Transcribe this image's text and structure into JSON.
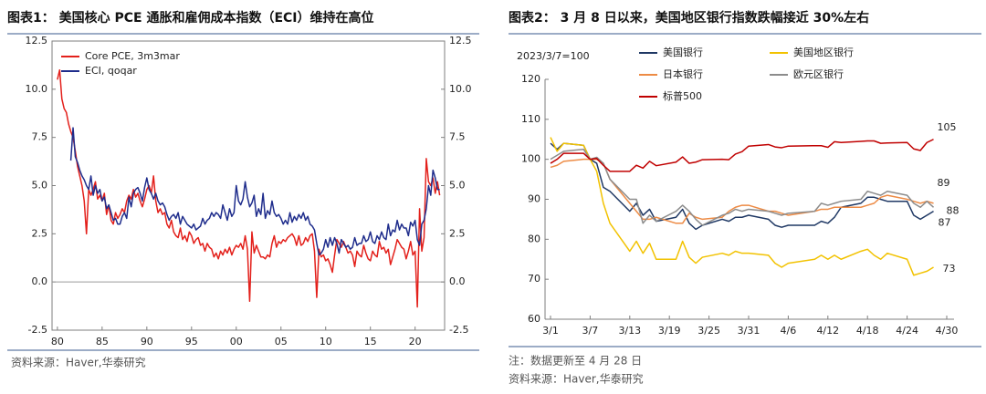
{
  "chart_data": [
    {
      "type": "line",
      "title": "图表1：  美国核心 PCE 通胀和雇佣成本指数（ECI）维持在高位",
      "source": "资料来源：Haver,华泰研究",
      "legend": "upper left",
      "zero_line": true,
      "x": [
        1980,
        1980.25,
        1980.5,
        1980.75,
        1981,
        1981.25,
        1981.5,
        1981.75,
        1982,
        1982.25,
        1982.5,
        1982.75,
        1983,
        1983.25,
        1983.5,
        1983.75,
        1984,
        1984.25,
        1984.5,
        1984.75,
        1985,
        1985.25,
        1985.5,
        1985.75,
        1986,
        1986.25,
        1986.5,
        1986.75,
        1987,
        1987.25,
        1987.5,
        1987.75,
        1988,
        1988.25,
        1988.5,
        1988.75,
        1989,
        1989.25,
        1989.5,
        1989.75,
        1990,
        1990.25,
        1990.5,
        1990.75,
        1991,
        1991.25,
        1991.5,
        1991.75,
        1992,
        1992.25,
        1992.5,
        1992.75,
        1993,
        1993.25,
        1993.5,
        1993.75,
        1994,
        1994.25,
        1994.5,
        1994.75,
        1995,
        1995.25,
        1995.5,
        1995.75,
        1996,
        1996.25,
        1996.5,
        1996.75,
        1997,
        1997.25,
        1997.5,
        1997.75,
        1998,
        1998.25,
        1998.5,
        1998.75,
        1999,
        1999.25,
        1999.5,
        1999.75,
        2000,
        2000.25,
        2000.5,
        2000.75,
        2001,
        2001.25,
        2001.5,
        2001.75,
        2002,
        2002.25,
        2002.5,
        2002.75,
        2003,
        2003.25,
        2003.5,
        2003.75,
        2004,
        2004.25,
        2004.5,
        2004.75,
        2005,
        2005.25,
        2005.5,
        2005.75,
        2006,
        2006.25,
        2006.5,
        2006.75,
        2007,
        2007.25,
        2007.5,
        2007.75,
        2008,
        2008.25,
        2008.5,
        2008.75,
        2009,
        2009.25,
        2009.5,
        2009.75,
        2010,
        2010.25,
        2010.5,
        2010.75,
        2011,
        2011.25,
        2011.5,
        2011.75,
        2012,
        2012.25,
        2012.5,
        2012.75,
        2013,
        2013.25,
        2013.5,
        2013.75,
        2014,
        2014.25,
        2014.5,
        2014.75,
        2015,
        2015.25,
        2015.5,
        2015.75,
        2016,
        2016.25,
        2016.5,
        2016.75,
        2017,
        2017.25,
        2017.5,
        2017.75,
        2018,
        2018.25,
        2018.5,
        2018.75,
        2019,
        2019.25,
        2019.5,
        2019.75,
        2020,
        2020.25,
        2020.5,
        2020.75,
        2021,
        2021.25,
        2021.5,
        2021.75,
        2022,
        2022.25,
        2022.5,
        2022.75
      ],
      "series": [
        {
          "name": "Core PCE, 3m3mar",
          "color": "#e3201b",
          "values": [
            10.5,
            11.0,
            9.5,
            9.0,
            8.8,
            8.2,
            7.8,
            7.5,
            6.8,
            6.0,
            5.5,
            5.0,
            4.2,
            2.5,
            4.8,
            4.5,
            4.8,
            5.2,
            4.3,
            4.5,
            4.2,
            4.6,
            3.5,
            4.0,
            3.2,
            3.0,
            3.6,
            3.3,
            3.5,
            3.8,
            3.6,
            4.2,
            4.5,
            4.3,
            4.8,
            4.4,
            4.6,
            4.2,
            3.9,
            4.3,
            4.8,
            5.0,
            4.6,
            5.5,
            4.2,
            3.6,
            3.8,
            3.5,
            3.6,
            3.0,
            2.8,
            3.2,
            2.6,
            2.4,
            2.3,
            2.8,
            2.2,
            2.4,
            2.1,
            2.6,
            2.4,
            2.0,
            2.2,
            2.3,
            1.9,
            2.0,
            1.6,
            2.0,
            1.8,
            1.7,
            1.3,
            1.5,
            1.2,
            1.6,
            1.4,
            1.7,
            1.5,
            1.8,
            1.4,
            1.7,
            1.9,
            1.8,
            2.0,
            1.7,
            2.4,
            1.7,
            -1.0,
            2.6,
            1.5,
            1.9,
            1.6,
            1.3,
            1.3,
            1.2,
            1.4,
            1.3,
            2.0,
            2.4,
            1.8,
            2.1,
            2.0,
            2.2,
            2.1,
            2.3,
            2.4,
            2.5,
            2.3,
            1.9,
            2.4,
            1.9,
            2.0,
            2.3,
            2.1,
            2.4,
            2.5,
            1.6,
            -0.8,
            1.7,
            1.3,
            1.4,
            1.1,
            1.2,
            0.9,
            0.5,
            1.4,
            2.2,
            2.0,
            1.8,
            2.1,
            1.8,
            1.5,
            1.6,
            1.4,
            0.8,
            1.6,
            1.4,
            1.3,
            1.9,
            1.5,
            1.2,
            1.1,
            1.6,
            1.4,
            1.3,
            2.1,
            1.7,
            1.8,
            1.5,
            1.7,
            0.9,
            1.3,
            1.7,
            2.2,
            2.0,
            1.8,
            1.7,
            1.2,
            1.6,
            2.1,
            1.4,
            1.6,
            -1.3,
            3.8,
            1.6,
            2.3,
            6.4,
            5.2,
            5.0,
            5.4,
            4.6,
            5.2,
            4.5
          ]
        },
        {
          "name": "ECI, qoqar",
          "color": "#1f2d8c",
          "values": [
            null,
            null,
            null,
            null,
            null,
            null,
            6.3,
            8.0,
            6.5,
            6.2,
            5.8,
            5.5,
            5.3,
            5.0,
            4.8,
            5.5,
            4.5,
            5.0,
            4.6,
            4.8,
            4.2,
            4.4,
            3.8,
            4.0,
            3.6,
            3.2,
            3.3,
            3.0,
            3.0,
            3.4,
            3.6,
            3.3,
            4.4,
            3.9,
            4.6,
            4.8,
            4.9,
            4.6,
            4.2,
            4.9,
            5.4,
            4.8,
            4.6,
            4.3,
            4.6,
            4.2,
            4.0,
            4.1,
            3.9,
            3.5,
            3.2,
            3.4,
            3.5,
            3.3,
            3.6,
            3.0,
            3.4,
            3.2,
            3.0,
            2.9,
            2.8,
            3.0,
            2.7,
            2.8,
            2.9,
            3.3,
            3.0,
            3.2,
            3.3,
            3.6,
            3.4,
            3.6,
            3.5,
            3.3,
            4.0,
            3.6,
            3.2,
            3.8,
            3.4,
            3.6,
            5.0,
            4.2,
            4.0,
            4.3,
            5.2,
            4.4,
            3.9,
            4.1,
            4.5,
            3.4,
            3.8,
            3.5,
            4.6,
            3.3,
            3.7,
            3.5,
            4.2,
            3.6,
            3.4,
            3.5,
            3.3,
            3.0,
            3.2,
            3.0,
            3.6,
            3.1,
            3.4,
            3.2,
            3.5,
            3.3,
            3.6,
            3.2,
            3.4,
            3.0,
            2.9,
            2.7,
            2.0,
            1.4,
            1.5,
            1.7,
            2.2,
            1.8,
            2.3,
            1.9,
            2.3,
            2.0,
            1.5,
            2.2,
            2.0,
            1.8,
            1.9,
            1.7,
            1.8,
            2.3,
            1.9,
            2.0,
            2.0,
            2.4,
            2.1,
            2.2,
            2.6,
            2.1,
            2.0,
            2.4,
            2.2,
            2.6,
            2.3,
            2.2,
            3.0,
            2.4,
            2.7,
            2.6,
            3.2,
            2.7,
            3.0,
            2.8,
            2.8,
            2.4,
            3.1,
            2.9,
            3.2,
            2.2,
            1.9,
            3.0,
            3.2,
            3.8,
            5.0,
            4.5,
            5.8,
            5.4,
            4.8,
            4.8
          ]
        }
      ],
      "xlim": [
        1979.4,
        2023.3
      ],
      "xticks": [
        {
          "value": 1980,
          "label": "80"
        },
        {
          "value": 1985,
          "label": "85"
        },
        {
          "value": 1990,
          "label": "90"
        },
        {
          "value": 1995,
          "label": "95"
        },
        {
          "value": 2000,
          "label": "00"
        },
        {
          "value": 2005,
          "label": "05"
        },
        {
          "value": 2010,
          "label": "10"
        },
        {
          "value": 2015,
          "label": "15"
        },
        {
          "value": 2020,
          "label": "20"
        }
      ],
      "ylim": [
        -2.5,
        12.5
      ],
      "yticks": [
        -2.5,
        {
          "value": 0,
          "label": "0.0"
        },
        2.5,
        {
          "value": 5,
          "label": "5.0"
        },
        7.5,
        {
          "value": 10,
          "label": "10.0"
        },
        12.5
      ],
      "y2lim": [
        -2.5,
        12.5
      ],
      "y2ticks": [
        -2.5,
        {
          "value": 0,
          "label": "0.0"
        },
        2.5,
        {
          "value": 5,
          "label": "5.0"
        },
        7.5,
        {
          "value": 10,
          "label": "10.0"
        },
        12.5
      ]
    },
    {
      "type": "line",
      "title": "图表2：  3 月 8 日以来，美国地区银行指数跌幅接近 30%左右",
      "y_unit_label": "2023/3/7=100",
      "note": "注：数据更新至 4 月 28 日",
      "source": "资料来源：Haver,华泰研究",
      "legend": "top",
      "end_labels": true,
      "x": [
        "3/1",
        "3/2",
        "3/3",
        "3/6",
        "3/7",
        "3/8",
        "3/9",
        "3/10",
        "3/13",
        "3/14",
        "3/15",
        "3/16",
        "3/17",
        "3/20",
        "3/21",
        "3/22",
        "3/23",
        "3/24",
        "3/27",
        "3/28",
        "3/29",
        "3/30",
        "3/31",
        "4/3",
        "4/4",
        "4/5",
        "4/6",
        "4/10",
        "4/11",
        "4/12",
        "4/13",
        "4/14",
        "4/17",
        "4/18",
        "4/19",
        "4/20",
        "4/21",
        "4/24",
        "4/25",
        "4/26",
        "4/27",
        "4/28"
      ],
      "series": [
        {
          "name": "美国银行",
          "color": "#1f3864",
          "values": [
            104,
            102.5,
            104,
            103.5,
            100,
            99,
            93,
            92,
            87,
            89,
            86,
            87.5,
            84.5,
            85.5,
            87.5,
            84,
            82.5,
            83.5,
            85,
            84.5,
            85.5,
            85.5,
            86,
            85,
            83.5,
            83,
            83.5,
            83.5,
            84.5,
            84,
            85.5,
            88,
            89,
            90.5,
            90.5,
            90,
            89.5,
            89.5,
            86,
            85,
            86,
            87
          ]
        },
        {
          "name": "美国地区银行",
          "color": "#f2c200",
          "values": [
            105.5,
            102,
            104,
            103.5,
            100,
            97,
            89,
            84,
            77,
            79.5,
            76.5,
            79,
            75,
            75,
            79.5,
            75.5,
            74,
            75.5,
            76.5,
            76,
            77,
            76.5,
            76.5,
            76,
            74,
            73,
            74,
            75,
            76,
            75,
            76,
            75,
            77,
            77.5,
            76,
            75,
            76.5,
            75,
            71,
            71.5,
            72,
            73
          ]
        },
        {
          "name": "日本银行",
          "color": "#ed8b45",
          "values": [
            98,
            98.5,
            99.5,
            100,
            100,
            100,
            99,
            95,
            89,
            87,
            85,
            85,
            85.5,
            84,
            84,
            86.5,
            85.5,
            85,
            85.5,
            87,
            88,
            88.5,
            88.5,
            87,
            87,
            86.5,
            86,
            87,
            87.5,
            87.5,
            88,
            88,
            88,
            88.5,
            89,
            90.5,
            91,
            90,
            89.5,
            89,
            89.5,
            89
          ]
        },
        {
          "name": "欧元区银行",
          "color": "#8c8c8c",
          "values": [
            100,
            101,
            102,
            102.5,
            100,
            100.5,
            99,
            95,
            90,
            90,
            84,
            86,
            84.5,
            87,
            88.5,
            87,
            85,
            83.5,
            86,
            86.5,
            87.5,
            87,
            87.5,
            87,
            86.5,
            86,
            86.5,
            87,
            89,
            88.5,
            89,
            89.5,
            90,
            92,
            91.5,
            91,
            92,
            91,
            89,
            88,
            89.5,
            88
          ]
        },
        {
          "name": "标普500",
          "color": "#c00000",
          "values": [
            99,
            100,
            101.5,
            101.5,
            100,
            100.2,
            98.5,
            97,
            97,
            98.5,
            97.8,
            99.5,
            98.4,
            99.3,
            100.6,
            99,
            99.3,
            99.9,
            100,
            99.9,
            101.3,
            101.9,
            103.3,
            103.7,
            103.1,
            102.9,
            103.3,
            103.4,
            103.4,
            103,
            104.4,
            104.2,
            104.5,
            104.6,
            104.6,
            104,
            104.1,
            104.2,
            102.6,
            102.2,
            104.2,
            105
          ]
        }
      ],
      "xlim": [
        "3/1",
        "4/30"
      ],
      "xticks": [
        "3/1",
        "3/7",
        "3/13",
        "3/19",
        "3/25",
        "3/31",
        "4/6",
        "4/12",
        "4/18",
        "4/24",
        "4/30"
      ],
      "ylim": [
        60,
        120
      ],
      "yticks": [
        60,
        70,
        80,
        90,
        100,
        110,
        120
      ]
    }
  ]
}
